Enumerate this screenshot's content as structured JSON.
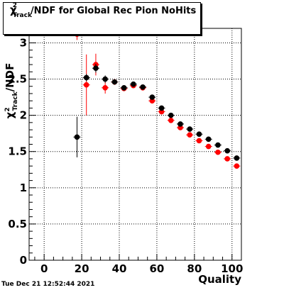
{
  "title": {
    "symbol": "χ",
    "superscript": "2",
    "subscript": "Track",
    "text": "/NDF for Global Rec Pion NoHits"
  },
  "footer": {
    "timestamp": "Tue Dec 21 12:52:44 2021"
  },
  "chart_data": {
    "type": "scatter",
    "xlabel": "Quality",
    "ylabel": "χ²_Track/NDF",
    "xlim": [
      -8,
      105
    ],
    "ylim": [
      0,
      3.2
    ],
    "xticks": [
      0,
      20,
      40,
      60,
      80,
      100
    ],
    "yticks": [
      0,
      0.5,
      1,
      1.5,
      2,
      2.5,
      3
    ],
    "ytick_labels": [
      "0",
      "0.5",
      "1",
      "1.5",
      "2",
      "2.5",
      "3"
    ],
    "grid": true,
    "colors": {
      "series_black": "#000000",
      "series_red": "#ff0000"
    },
    "series": [
      {
        "color": "#000000",
        "points": [
          {
            "x": 17.5,
            "y": 1.7,
            "err": 0.28
          },
          {
            "x": 22.5,
            "y": 2.52,
            "err": 0.05
          },
          {
            "x": 27.5,
            "y": 2.65,
            "err": 0.06
          },
          {
            "x": 32.5,
            "y": 2.5,
            "err": 0.05
          },
          {
            "x": 37.5,
            "y": 2.46,
            "err": 0.03
          },
          {
            "x": 42.5,
            "y": 2.38,
            "err": 0.02
          },
          {
            "x": 47.5,
            "y": 2.43,
            "err": 0.02
          },
          {
            "x": 52.5,
            "y": 2.39,
            "err": 0.02
          },
          {
            "x": 57.5,
            "y": 2.25,
            "err": 0.02
          },
          {
            "x": 62.5,
            "y": 2.1,
            "err": 0.02
          },
          {
            "x": 67.5,
            "y": 2.0,
            "err": 0.02
          },
          {
            "x": 72.5,
            "y": 1.88,
            "err": 0.01
          },
          {
            "x": 77.5,
            "y": 1.81,
            "err": 0.01
          },
          {
            "x": 82.5,
            "y": 1.74,
            "err": 0.01
          },
          {
            "x": 87.5,
            "y": 1.67,
            "err": 0.01
          },
          {
            "x": 92.5,
            "y": 1.59,
            "err": 0.01
          },
          {
            "x": 97.5,
            "y": 1.51,
            "err": 0.01
          },
          {
            "x": 102.5,
            "y": 1.41,
            "err": 0.01
          }
        ]
      },
      {
        "color": "#ff0000",
        "points": [
          {
            "x": 17.5,
            "y": 3.12,
            "err": 0.08
          },
          {
            "x": 22.5,
            "y": 2.42,
            "err": 0.42
          },
          {
            "x": 27.5,
            "y": 2.7,
            "err": 0.15
          },
          {
            "x": 32.5,
            "y": 2.38,
            "err": 0.08
          },
          {
            "x": 37.5,
            "y": 2.46,
            "err": 0.04
          },
          {
            "x": 42.5,
            "y": 2.37,
            "err": 0.03
          },
          {
            "x": 47.5,
            "y": 2.41,
            "err": 0.02
          },
          {
            "x": 52.5,
            "y": 2.38,
            "err": 0.02
          },
          {
            "x": 57.5,
            "y": 2.2,
            "err": 0.02
          },
          {
            "x": 62.5,
            "y": 2.05,
            "err": 0.02
          },
          {
            "x": 67.5,
            "y": 1.93,
            "err": 0.02
          },
          {
            "x": 72.5,
            "y": 1.83,
            "err": 0.01
          },
          {
            "x": 77.5,
            "y": 1.73,
            "err": 0.01
          },
          {
            "x": 82.5,
            "y": 1.65,
            "err": 0.01
          },
          {
            "x": 87.5,
            "y": 1.57,
            "err": 0.01
          },
          {
            "x": 92.5,
            "y": 1.49,
            "err": 0.01
          },
          {
            "x": 97.5,
            "y": 1.4,
            "err": 0.01
          },
          {
            "x": 102.5,
            "y": 1.3,
            "err": 0.01
          }
        ]
      }
    ]
  }
}
